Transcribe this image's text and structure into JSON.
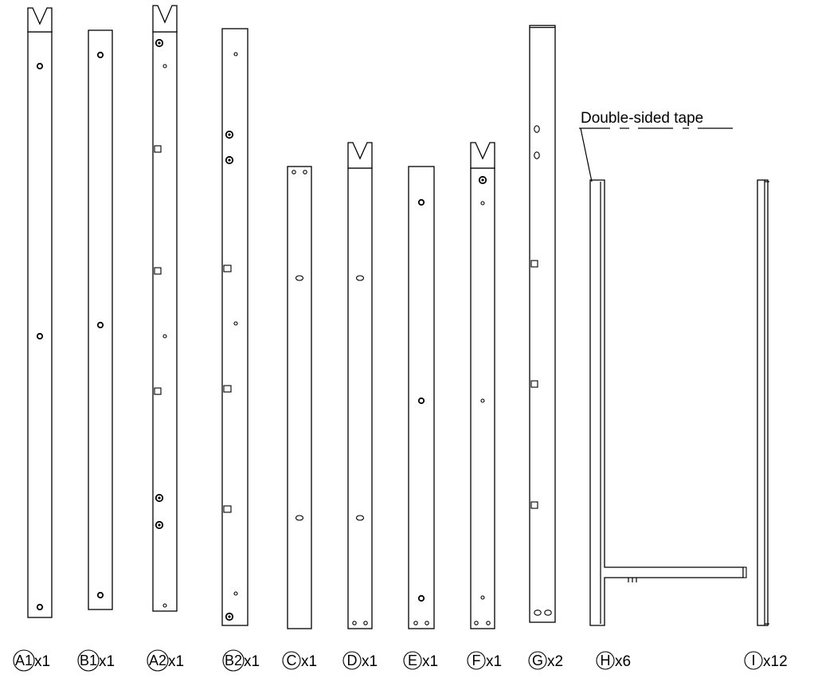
{
  "callout": {
    "text": "Double-sided tape"
  },
  "parts": [
    {
      "id": "A1",
      "qty": "x1"
    },
    {
      "id": "B1",
      "qty": "x1"
    },
    {
      "id": "A2",
      "qty": "x1"
    },
    {
      "id": "B2",
      "qty": "x1"
    },
    {
      "id": "C",
      "qty": "x1"
    },
    {
      "id": "D",
      "qty": "x1"
    },
    {
      "id": "E",
      "qty": "x1"
    },
    {
      "id": "F",
      "qty": "x1"
    },
    {
      "id": "G",
      "qty": "x2"
    },
    {
      "id": "H",
      "qty": "x6"
    },
    {
      "id": "I",
      "qty": "x12"
    }
  ]
}
